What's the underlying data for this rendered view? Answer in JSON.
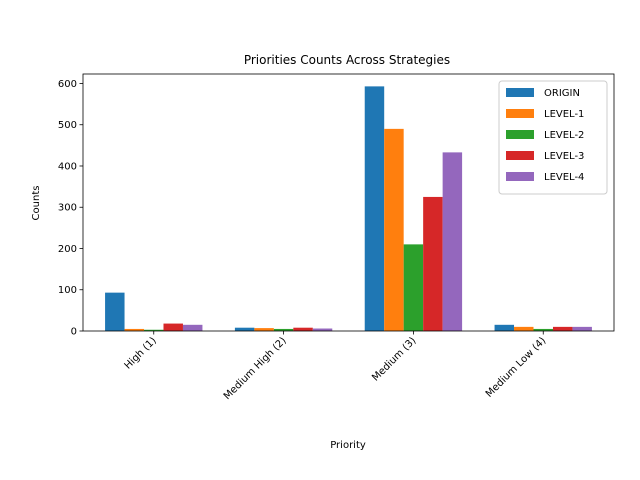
{
  "chart_data": {
    "type": "bar",
    "title": "Priorities Counts Across Strategies",
    "xlabel": "Priority",
    "ylabel": "Counts",
    "categories": [
      "High (1)",
      "Medium High (2)",
      "Medium (3)",
      "Medium Low (4)"
    ],
    "ylim": [
      0,
      623
    ],
    "yticks": [
      0,
      100,
      200,
      300,
      400,
      500,
      600
    ],
    "grid": false,
    "legend_position": "top-right",
    "series": [
      {
        "name": "ORIGIN",
        "color": "#1f77b4",
        "values": [
          93,
          8,
          593,
          15
        ]
      },
      {
        "name": "LEVEL-1",
        "color": "#ff7f0e",
        "values": [
          5,
          7,
          490,
          10
        ]
      },
      {
        "name": "LEVEL-2",
        "color": "#2ca02c",
        "values": [
          3,
          5,
          210,
          5
        ]
      },
      {
        "name": "LEVEL-3",
        "color": "#d62728",
        "values": [
          18,
          8,
          325,
          10
        ]
      },
      {
        "name": "LEVEL-4",
        "color": "#9467bd",
        "values": [
          15,
          6,
          433,
          10
        ]
      }
    ]
  }
}
